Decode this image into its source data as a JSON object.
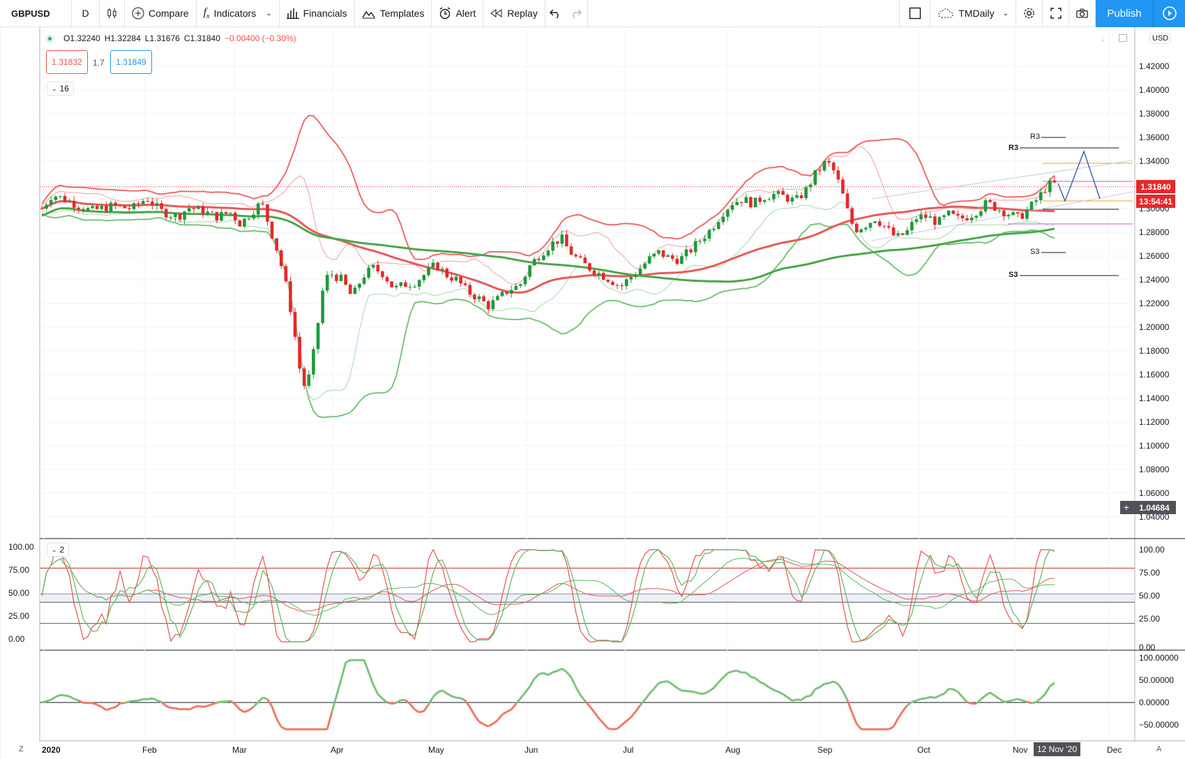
{
  "toolbar": {
    "symbol": "GBPUSD",
    "interval": "D",
    "compare": "Compare",
    "indicators": "Indicators",
    "financials": "Financials",
    "templates": "Templates",
    "alert": "Alert",
    "replay": "Replay",
    "layout_name": "TMDaily",
    "publish": "Publish"
  },
  "legend": {
    "open": "O1.32240",
    "high": "H1.32284",
    "low": "L1.31676",
    "close": "C1.31840",
    "change": "−0.00400 (−0.30%)"
  },
  "quote": {
    "sell": "1.31832",
    "spread": "1.7",
    "buy": "1.31849"
  },
  "indicators_collapse": {
    "main": "16",
    "osc": "2"
  },
  "price_axis": {
    "currency": "USD",
    "ticks": [
      "1.42000",
      "1.40000",
      "1.38000",
      "1.36000",
      "1.34000",
      "1.32000",
      "1.30000",
      "1.28000",
      "1.26000",
      "1.24000",
      "1.22000",
      "1.20000",
      "1.18000",
      "1.16000",
      "1.14000",
      "1.12000",
      "1.10000",
      "1.08000",
      "1.06000",
      "1.04000"
    ],
    "last_price": "1.31840",
    "countdown": "13:54:41",
    "crosshair_price": "1.04684"
  },
  "pivot_labels": {
    "r3_a": "R3",
    "r3_b": "R3",
    "s3_a": "S3",
    "s3_b": "S3"
  },
  "osc_axis": {
    "ticks": [
      "100.00",
      "75.00",
      "50.00",
      "25.00",
      "0.00"
    ]
  },
  "mom_axis": {
    "ticks": [
      "100.00000",
      "50.00000",
      "0.00000",
      "−50.00000"
    ]
  },
  "time_axis": {
    "labels": [
      "2020",
      "Feb",
      "Mar",
      "Apr",
      "May",
      "Jun",
      "Jul",
      "Aug",
      "Sep",
      "Oct",
      "Nov",
      "Dec"
    ],
    "crosshair_date": "12 Nov '20"
  },
  "corner": {
    "left": "Z",
    "right": "A"
  },
  "colors": {
    "up": "#1e9a3a",
    "down": "#e8272a",
    "accent": "#2196f3",
    "ma_red": "#e85a5a",
    "ma_green": "#4ca64c"
  }
}
